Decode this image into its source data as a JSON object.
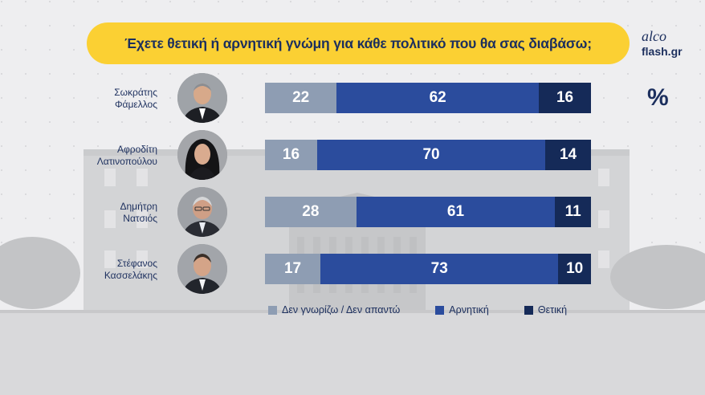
{
  "title": "Έχετε θετική ή αρνητική γνώμη για κάθε πολιτικό που θα σας διαβάσω;",
  "brand": {
    "top": "alco",
    "bottom": "flash.gr"
  },
  "unit": "%",
  "colors": {
    "dont_know": "#8e9db3",
    "negative": "#2b4c9d",
    "positive": "#152a58",
    "title_bg": "#fbd033",
    "text": "#1c2f5e"
  },
  "chart_data": {
    "type": "bar",
    "orientation": "horizontal",
    "stacked": true,
    "title": "Έχετε θετική ή αρνητική γνώμη για κάθε πολιτικό που θα σας διαβάσω;",
    "unit": "%",
    "categories": [
      "Σωκράτης Φάμελλος",
      "Αφροδίτη Λατινοπούλου",
      "Δημήτρη Νατσιός",
      "Στέφανος Κασσελάκης"
    ],
    "series": [
      {
        "name": "Δεν γνωρίζω / Δεν απαντώ",
        "values": [
          22,
          16,
          28,
          17
        ]
      },
      {
        "name": "Αρνητική",
        "values": [
          62,
          70,
          61,
          73
        ]
      },
      {
        "name": "Θετική",
        "values": [
          16,
          14,
          11,
          10
        ]
      }
    ],
    "legend_position": "bottom"
  },
  "rows": [
    {
      "name_line1": "Σωκράτης",
      "name_line2": "Φάμελλος",
      "dk": "22",
      "neg": "62",
      "pos": "16"
    },
    {
      "name_line1": "Αφροδίτη",
      "name_line2": "Λατινοπούλου",
      "dk": "16",
      "neg": "70",
      "pos": "14"
    },
    {
      "name_line1": "Δημήτρη",
      "name_line2": "Νατσιός",
      "dk": "28",
      "neg": "61",
      "pos": "11"
    },
    {
      "name_line1": "Στέφανος",
      "name_line2": "Κασσελάκης",
      "dk": "17",
      "neg": "73",
      "pos": "10"
    }
  ],
  "legend": {
    "dont_know": "Δεν γνωρίζω / Δεν απαντώ",
    "negative": "Αρνητική",
    "positive": "Θετική"
  }
}
